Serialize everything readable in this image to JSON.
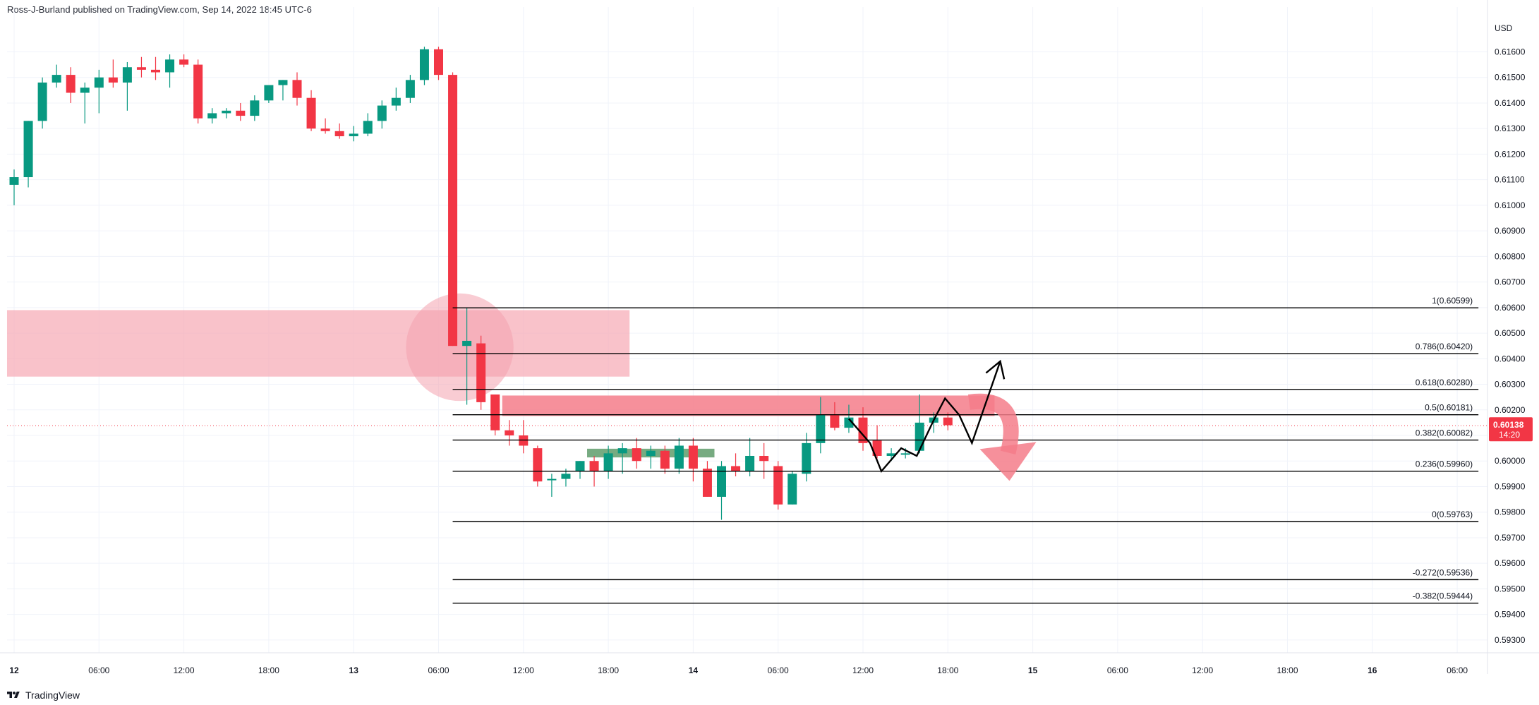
{
  "header": {
    "publisher_line": "Ross-J-Burland published on TradingView.com, Sep 14, 2022 18:45 UTC-6"
  },
  "footer": {
    "brand": "TradingView"
  },
  "colors": {
    "up": "#26a69a",
    "down": "#ef5350",
    "upBody": "#089981",
    "downBody": "#f23645",
    "zone": "#f7a8b4",
    "circle": "#f4a3af",
    "fibLine": "#000000",
    "priceTag": "#f23645",
    "resistance": "#f47c8a",
    "support": "#4a8f57",
    "grid": "#f0f3fa"
  },
  "chart_data": {
    "type": "candlestick",
    "symbol_currency": "USD",
    "title": "",
    "ylim": [
      0.5925,
      0.6172
    ],
    "price_ticks": [
      0.616,
      0.615,
      0.614,
      0.613,
      0.612,
      0.611,
      0.61,
      0.609,
      0.608,
      0.607,
      0.606,
      0.605,
      0.604,
      0.603,
      0.602,
      0.601,
      0.6,
      0.599,
      0.598,
      0.597,
      0.596,
      0.595,
      0.594,
      0.593
    ],
    "price_tick_labels": [
      "0.61600",
      "0.61500",
      "0.61400",
      "0.61300",
      "0.61200",
      "0.61100",
      "0.61000",
      "0.60900",
      "0.60800",
      "0.60700",
      "0.60600",
      "0.60500",
      "0.60400",
      "0.60300",
      "0.60200",
      "0.60100",
      "0.60000",
      "0.59900",
      "0.59800",
      "0.59700",
      "0.59600",
      "0.59500",
      "0.59400",
      "0.59300"
    ],
    "time_labels": [
      {
        "bar": 0,
        "label": "12",
        "bold": true
      },
      {
        "bar": 6,
        "label": "06:00"
      },
      {
        "bar": 12,
        "label": "12:00"
      },
      {
        "bar": 18,
        "label": "18:00"
      },
      {
        "bar": 24,
        "label": "13",
        "bold": true
      },
      {
        "bar": 30,
        "label": "06:00"
      },
      {
        "bar": 36,
        "label": "12:00"
      },
      {
        "bar": 42,
        "label": "18:00"
      },
      {
        "bar": 48,
        "label": "14",
        "bold": true
      },
      {
        "bar": 54,
        "label": "06:00"
      },
      {
        "bar": 60,
        "label": "12:00"
      },
      {
        "bar": 66,
        "label": "18:00"
      },
      {
        "bar": 72,
        "label": "15",
        "bold": true
      },
      {
        "bar": 78,
        "label": "06:00"
      },
      {
        "bar": 84,
        "label": "12:00"
      },
      {
        "bar": 90,
        "label": "18:00"
      },
      {
        "bar": 96,
        "label": "16",
        "bold": true
      },
      {
        "bar": 102,
        "label": "06:00"
      }
    ],
    "candles": [
      {
        "o": 0.6108,
        "h": 0.6114,
        "l": 0.61,
        "c": 0.6111
      },
      {
        "o": 0.6111,
        "h": 0.6133,
        "l": 0.6107,
        "c": 0.6133
      },
      {
        "o": 0.6133,
        "h": 0.615,
        "l": 0.613,
        "c": 0.6148
      },
      {
        "o": 0.6148,
        "h": 0.6155,
        "l": 0.6146,
        "c": 0.6151
      },
      {
        "o": 0.6151,
        "h": 0.6154,
        "l": 0.614,
        "c": 0.6144
      },
      {
        "o": 0.6144,
        "h": 0.6148,
        "l": 0.6132,
        "c": 0.6146
      },
      {
        "o": 0.6146,
        "h": 0.6153,
        "l": 0.6136,
        "c": 0.615
      },
      {
        "o": 0.615,
        "h": 0.6157,
        "l": 0.6146,
        "c": 0.6148
      },
      {
        "o": 0.6148,
        "h": 0.6156,
        "l": 0.6137,
        "c": 0.6154
      },
      {
        "o": 0.6154,
        "h": 0.6158,
        "l": 0.615,
        "c": 0.6153
      },
      {
        "o": 0.6153,
        "h": 0.6158,
        "l": 0.6149,
        "c": 0.6152
      },
      {
        "o": 0.6152,
        "h": 0.6159,
        "l": 0.6146,
        "c": 0.6157
      },
      {
        "o": 0.6157,
        "h": 0.6159,
        "l": 0.6154,
        "c": 0.6155
      },
      {
        "o": 0.6155,
        "h": 0.6157,
        "l": 0.6132,
        "c": 0.6134
      },
      {
        "o": 0.6134,
        "h": 0.6138,
        "l": 0.6132,
        "c": 0.6136
      },
      {
        "o": 0.6136,
        "h": 0.6138,
        "l": 0.6134,
        "c": 0.6137
      },
      {
        "o": 0.6137,
        "h": 0.614,
        "l": 0.6133,
        "c": 0.6135
      },
      {
        "o": 0.6135,
        "h": 0.6143,
        "l": 0.6133,
        "c": 0.6141
      },
      {
        "o": 0.6141,
        "h": 0.6146,
        "l": 0.614,
        "c": 0.6147
      },
      {
        "o": 0.6147,
        "h": 0.6149,
        "l": 0.6141,
        "c": 0.6149
      },
      {
        "o": 0.6149,
        "h": 0.6152,
        "l": 0.6139,
        "c": 0.6142
      },
      {
        "o": 0.6142,
        "h": 0.6145,
        "l": 0.6129,
        "c": 0.613
      },
      {
        "o": 0.613,
        "h": 0.6134,
        "l": 0.6128,
        "c": 0.6129
      },
      {
        "o": 0.6129,
        "h": 0.6132,
        "l": 0.6126,
        "c": 0.6127
      },
      {
        "o": 0.6127,
        "h": 0.6131,
        "l": 0.6125,
        "c": 0.6128
      },
      {
        "o": 0.6128,
        "h": 0.6136,
        "l": 0.6127,
        "c": 0.6133
      },
      {
        "o": 0.6133,
        "h": 0.6141,
        "l": 0.613,
        "c": 0.6139
      },
      {
        "o": 0.6139,
        "h": 0.6146,
        "l": 0.6137,
        "c": 0.6142
      },
      {
        "o": 0.6142,
        "h": 0.6151,
        "l": 0.614,
        "c": 0.6149
      },
      {
        "o": 0.6149,
        "h": 0.6162,
        "l": 0.6147,
        "c": 0.6161
      },
      {
        "o": 0.6161,
        "h": 0.6162,
        "l": 0.6149,
        "c": 0.6151
      },
      {
        "o": 0.6151,
        "h": 0.6152,
        "l": 0.6045,
        "c": 0.6045
      },
      {
        "o": 0.6045,
        "h": 0.606,
        "l": 0.6022,
        "c": 0.6047
      },
      {
        "o": 0.6046,
        "h": 0.6049,
        "l": 0.602,
        "c": 0.6023
      },
      {
        "o": 0.6026,
        "h": 0.6026,
        "l": 0.601,
        "c": 0.6012
      },
      {
        "o": 0.6012,
        "h": 0.6016,
        "l": 0.6006,
        "c": 0.601
      },
      {
        "o": 0.601,
        "h": 0.6016,
        "l": 0.6003,
        "c": 0.6006
      },
      {
        "o": 0.6005,
        "h": 0.6006,
        "l": 0.599,
        "c": 0.5992
      },
      {
        "o": 0.5993,
        "h": 0.5995,
        "l": 0.5986,
        "c": 0.5993
      },
      {
        "o": 0.5993,
        "h": 0.5997,
        "l": 0.599,
        "c": 0.5995
      },
      {
        "o": 0.5996,
        "h": 0.6,
        "l": 0.5993,
        "c": 0.6
      },
      {
        "o": 0.6,
        "h": 0.6002,
        "l": 0.599,
        "c": 0.5996
      },
      {
        "o": 0.5996,
        "h": 0.6006,
        "l": 0.5993,
        "c": 0.6003
      },
      {
        "o": 0.6003,
        "h": 0.6007,
        "l": 0.5995,
        "c": 0.6005
      },
      {
        "o": 0.6005,
        "h": 0.6009,
        "l": 0.5997,
        "c": 0.6
      },
      {
        "o": 0.6002,
        "h": 0.6006,
        "l": 0.5997,
        "c": 0.6004
      },
      {
        "o": 0.6004,
        "h": 0.6006,
        "l": 0.5995,
        "c": 0.5997
      },
      {
        "o": 0.5997,
        "h": 0.6009,
        "l": 0.5995,
        "c": 0.6006
      },
      {
        "o": 0.6006,
        "h": 0.6009,
        "l": 0.5992,
        "c": 0.5997
      },
      {
        "o": 0.5997,
        "h": 0.6,
        "l": 0.5986,
        "c": 0.5986
      },
      {
        "o": 0.5986,
        "h": 0.6,
        "l": 0.5977,
        "c": 0.5998
      },
      {
        "o": 0.5998,
        "h": 0.6003,
        "l": 0.5994,
        "c": 0.5996
      },
      {
        "o": 0.5996,
        "h": 0.6009,
        "l": 0.5994,
        "c": 0.6002
      },
      {
        "o": 0.6002,
        "h": 0.6007,
        "l": 0.5993,
        "c": 0.6
      },
      {
        "o": 0.5998,
        "h": 0.6,
        "l": 0.5981,
        "c": 0.5983
      },
      {
        "o": 0.5983,
        "h": 0.5996,
        "l": 0.5983,
        "c": 0.5995
      },
      {
        "o": 0.5995,
        "h": 0.6011,
        "l": 0.5992,
        "c": 0.6007
      },
      {
        "o": 0.6007,
        "h": 0.6025,
        "l": 0.6003,
        "c": 0.6018
      },
      {
        "o": 0.6018,
        "h": 0.6023,
        "l": 0.6012,
        "c": 0.6013
      },
      {
        "o": 0.6013,
        "h": 0.6022,
        "l": 0.6011,
        "c": 0.6017
      },
      {
        "o": 0.6017,
        "h": 0.6021,
        "l": 0.6004,
        "c": 0.6007
      },
      {
        "o": 0.6008,
        "h": 0.6014,
        "l": 0.6001,
        "c": 0.6002
      },
      {
        "o": 0.6002,
        "h": 0.6005,
        "l": 0.6,
        "c": 0.6003
      },
      {
        "o": 0.6003,
        "h": 0.6005,
        "l": 0.6001,
        "c": 0.6003
      },
      {
        "o": 0.6004,
        "h": 0.6026,
        "l": 0.6003,
        "c": 0.6015
      },
      {
        "o": 0.6015,
        "h": 0.6019,
        "l": 0.6011,
        "c": 0.6017
      },
      {
        "o": 0.6017,
        "h": 0.6019,
        "l": 0.6012,
        "c": 0.6014
      }
    ],
    "current_price": 0.60138,
    "price_tag": {
      "price": "0.60138",
      "countdown": "14:20"
    },
    "supply_zone": {
      "x_start_bar": -0.5,
      "x_end_bar": 43.5,
      "y_low": 0.6033,
      "y_high": 0.6059
    },
    "highlight_circle": {
      "bar": 31.5,
      "price": 0.60445,
      "radius_bars": 3.8
    },
    "resistance_zone": {
      "x_start_bar": 34.5,
      "x_end_bar": 69.3,
      "y_low": 0.60176,
      "y_high": 0.60256
    },
    "support_zone": {
      "x_start_bar": 40.5,
      "x_end_bar": 49.5,
      "y_low": 0.60014,
      "y_high": 0.60048
    },
    "fib_levels": [
      {
        "ratio": "1",
        "price": 0.60599,
        "label": "1(0.60599)"
      },
      {
        "ratio": "0.786",
        "price": 0.6042,
        "label": "0.786(0.60420)"
      },
      {
        "ratio": "0.618",
        "price": 0.6028,
        "label": "0.618(0.60280)"
      },
      {
        "ratio": "0.5",
        "price": 0.60181,
        "label": "0.5(0.60181)"
      },
      {
        "ratio": "0.382",
        "price": 0.60082,
        "label": "0.382(0.60082)"
      },
      {
        "ratio": "0.236",
        "price": 0.5996,
        "label": "0.236(0.59960)"
      },
      {
        "ratio": "0",
        "price": 0.59763,
        "label": "0(0.59763)"
      },
      {
        "ratio": "-0.272",
        "price": 0.59536,
        "label": "-0.272(0.59536)"
      },
      {
        "ratio": "-0.382",
        "price": 0.59444,
        "label": "-0.382(0.59444)"
      }
    ],
    "fib_start_bar": 31.0,
    "fib_end_bar": 103.5,
    "projection_path": [
      {
        "bar": 59.0,
        "price": 0.60165
      },
      {
        "bar": 60.5,
        "price": 0.6007
      },
      {
        "bar": 61.3,
        "price": 0.5996
      },
      {
        "bar": 62.7,
        "price": 0.6005
      },
      {
        "bar": 63.8,
        "price": 0.6002
      },
      {
        "bar": 65.0,
        "price": 0.6016
      },
      {
        "bar": 65.8,
        "price": 0.60245
      },
      {
        "bar": 66.8,
        "price": 0.6018
      },
      {
        "bar": 67.7,
        "price": 0.6007
      },
      {
        "bar": 69.7,
        "price": 0.6039
      }
    ],
    "bearish_arrow": {
      "from_bar": 67.5,
      "from_price": 0.6023,
      "to_bar": 70.5,
      "to_price": 0.5995
    }
  }
}
